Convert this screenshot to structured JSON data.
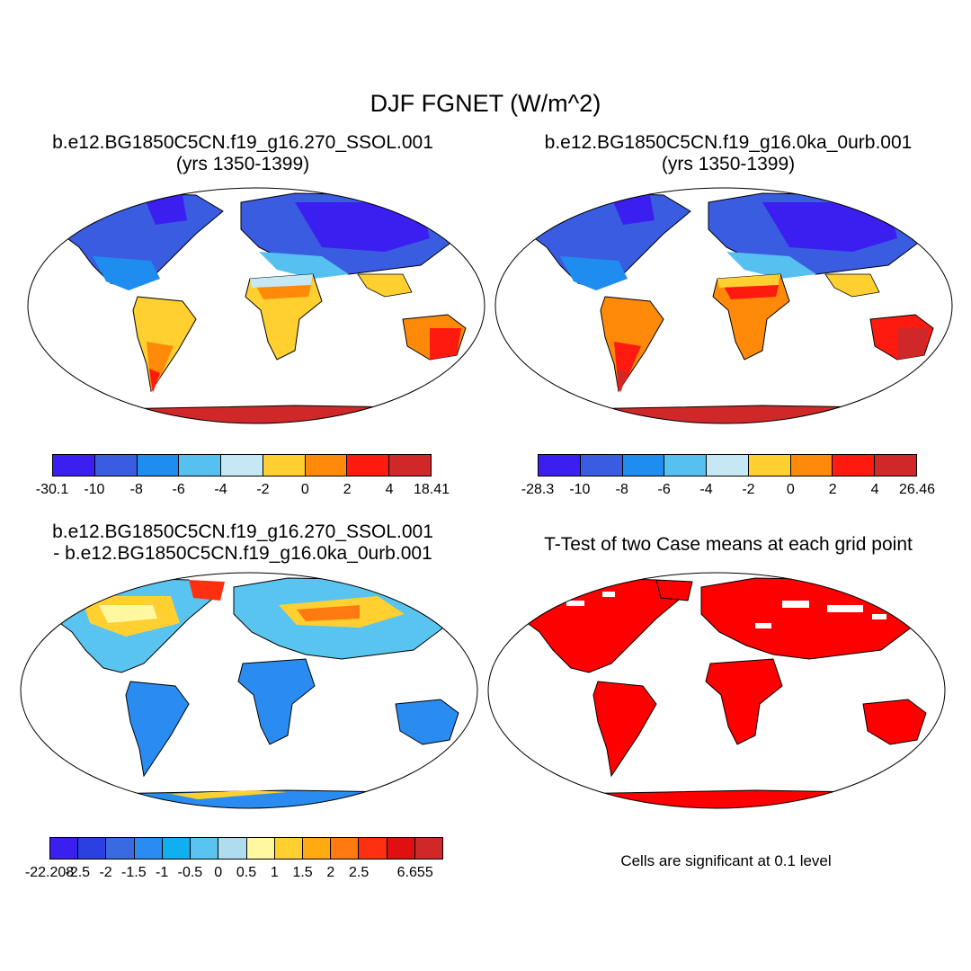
{
  "title": "DJF FGNET (W/m^2)",
  "panels": [
    {
      "title_line1": "b.e12.BG1850C5CN.f19_g16.270_SSOL.001",
      "title_line2": "(yrs 1350-1399)"
    },
    {
      "title_line1": "b.e12.BG1850C5CN.f19_g16.0ka_0urb.001",
      "title_line2": "(yrs 1350-1399)"
    },
    {
      "title_line1": "b.e12.BG1850C5CN.f19_g16.270_SSOL.001",
      "title_line2": "- b.e12.BG1850C5CN.f19_g16.0ka_0urb.001"
    },
    {
      "title_line1": "T-Test of two Case means at each grid point",
      "note": "Cells are significant at 0.1 level"
    }
  ],
  "colorbars": [
    {
      "colors": [
        "#3a1ff0",
        "#3a5ce0",
        "#1f8cf0",
        "#56c0f0",
        "#c6e8f4",
        "#ffd030",
        "#ff8a0a",
        "#ff1a10",
        "#d02828"
      ],
      "labels": [
        "-30.1",
        "-10",
        "-8",
        "-6",
        "-4",
        "-2",
        "0",
        "2",
        "4",
        "18.41"
      ]
    },
    {
      "colors": [
        "#3a1ff0",
        "#3a5ce0",
        "#1f8cf0",
        "#56c0f0",
        "#c6e8f4",
        "#ffd030",
        "#ff8a0a",
        "#ff1a10",
        "#d02828"
      ],
      "labels": [
        "-28.3",
        "-10",
        "-8",
        "-6",
        "-4",
        "-2",
        "0",
        "2",
        "4",
        "26.46"
      ]
    },
    {
      "colors": [
        "#3a1ff0",
        "#2a40e0",
        "#3a6ae0",
        "#2a8cf0",
        "#10b0f0",
        "#5ac4f0",
        "#b0dcf0",
        "#fff8a0",
        "#ffd030",
        "#ffaa10",
        "#ff7a10",
        "#ff3010",
        "#e01010",
        "#d02828"
      ],
      "labels": [
        "-22.208",
        "-2.5",
        "-2",
        "-1.5",
        "-1",
        "-0.5",
        "0",
        "0.5",
        "1",
        "1.5",
        "2",
        "2.5",
        "",
        "6.655"
      ]
    }
  ]
}
